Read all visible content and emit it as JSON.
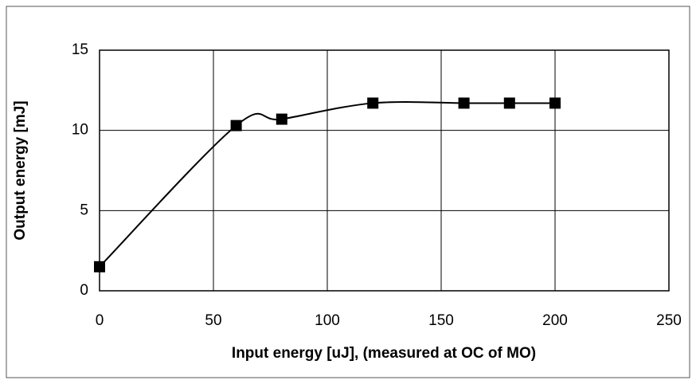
{
  "chart_data": {
    "type": "scatter",
    "smooth": true,
    "marker": "square",
    "color": "#000000",
    "xlabel": "Input energy [uJ], (measured at OC of MO)",
    "ylabel": "Output energy [mJ]",
    "x": [
      0,
      60,
      80,
      120,
      160,
      180,
      200
    ],
    "values": [
      1.5,
      10.3,
      10.7,
      11.7,
      11.7,
      11.7,
      11.7
    ],
    "xlim": [
      0,
      250
    ],
    "xticks": [
      0,
      50,
      100,
      150,
      200,
      250
    ],
    "ylim": [
      0,
      15
    ],
    "yticks": [
      0,
      5,
      10,
      15
    ],
    "grid": true
  }
}
